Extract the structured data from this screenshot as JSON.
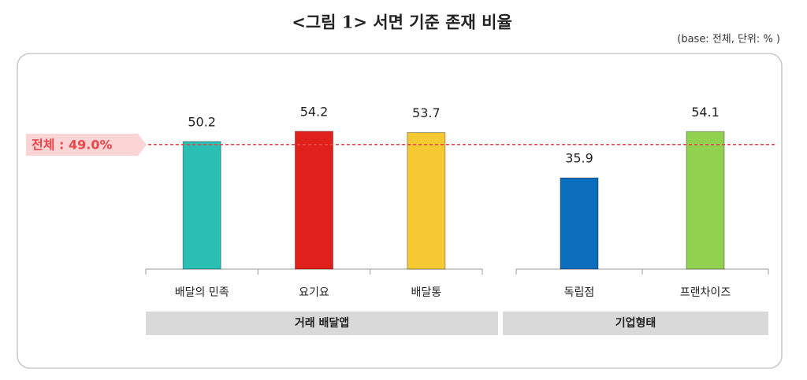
{
  "chart_data": {
    "type": "bar",
    "title": "<그림 1> 서면 기준 존재 비율",
    "subtitle": "(base: 전체, 단위: % )",
    "reference": {
      "value": 49.0,
      "label": "전체 : 49.0%",
      "color": "#e8464a"
    },
    "groups": [
      {
        "name": "거래 배달앱",
        "categories": [
          "배달의 민족",
          "요기요",
          "배달통"
        ],
        "values": [
          50.2,
          54.2,
          53.7
        ],
        "colors": [
          "#2bbfb3",
          "#e0201b",
          "#f5c932"
        ]
      },
      {
        "name": "기업형태",
        "categories": [
          "독립점",
          "프랜차이즈"
        ],
        "values": [
          35.9,
          54.1
        ],
        "colors": [
          "#0a6ebd",
          "#92d050"
        ]
      }
    ]
  }
}
